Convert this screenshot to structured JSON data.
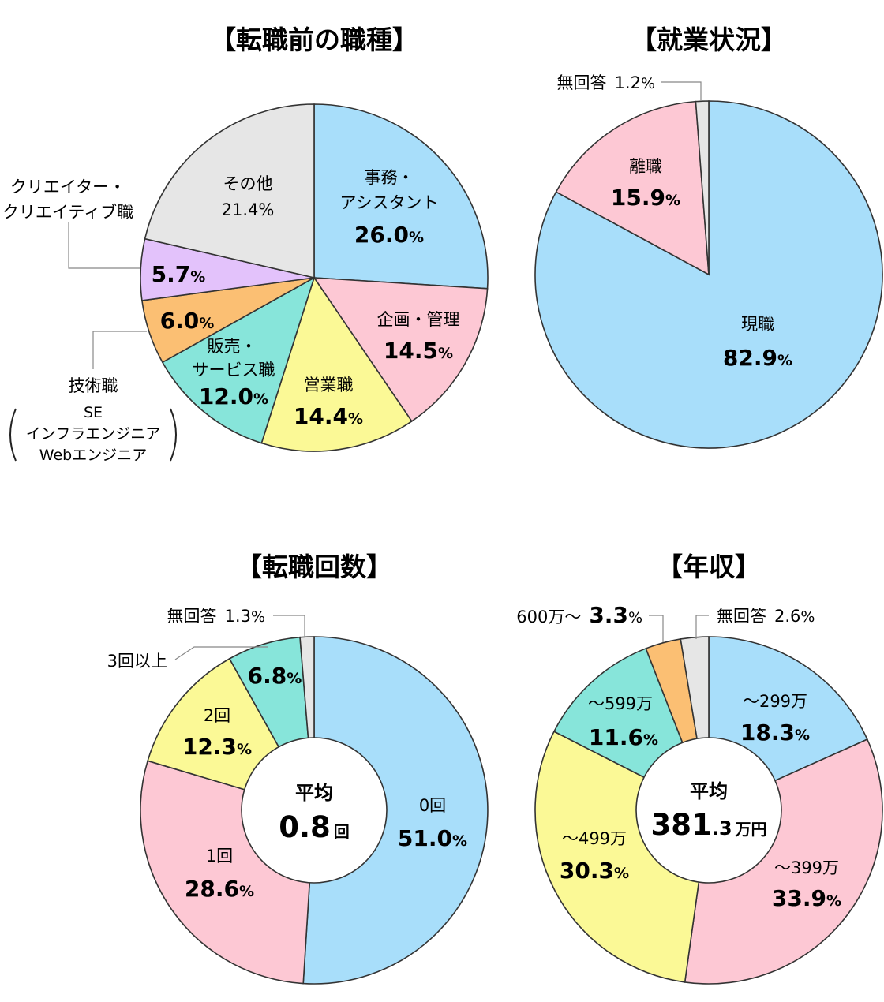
{
  "colors": {
    "blue": "#a8defa",
    "pink": "#fdc8d4",
    "teal": "#87e5da",
    "yellow": "#fbf996",
    "orange": "#fbbf73",
    "purple": "#e3c2fb",
    "gray": "#e6e6e6"
  },
  "chart_data": [
    {
      "type": "pie",
      "title": "【転職前の職種】",
      "slices": [
        {
          "label": "事務・アシスタント",
          "value": 26.0,
          "display": "26.0",
          "color": "blue"
        },
        {
          "label": "企画・管理",
          "value": 14.5,
          "display": "14.5",
          "color": "pink"
        },
        {
          "label": "営業職",
          "value": 14.4,
          "display": "14.4",
          "color": "yellow"
        },
        {
          "label": "販売・サービス職",
          "value": 12.0,
          "display": "12.0",
          "color": "teal"
        },
        {
          "label": "技術職",
          "value": 6.0,
          "display": "6.0",
          "color": "orange"
        },
        {
          "label": "クリエイター・クリエイティブ職",
          "value": 5.7,
          "display": "5.7",
          "color": "purple"
        },
        {
          "label": "その他",
          "value": 21.4,
          "display": "21.4",
          "color": "gray"
        }
      ],
      "labels": {
        "jimu_line1": "事務・",
        "jimu_line2": "アシスタント",
        "kikaku": "企画・管理",
        "eigyo": "営業職",
        "hanbai_line1": "販売・",
        "hanbai_line2": "サービス職",
        "creator_line1": "クリエイター・",
        "creator_line2": "クリエイティブ職",
        "other": "その他",
        "gijutsu": "技術職",
        "gijutsu_sub1": "SE",
        "gijutsu_sub2": "インフラエンジニア",
        "gijutsu_sub3": "Webエンジニア"
      }
    },
    {
      "type": "pie",
      "title": "【就業状況】",
      "slices": [
        {
          "label": "現職",
          "value": 82.9,
          "display": "82.9",
          "color": "blue"
        },
        {
          "label": "離職",
          "value": 15.9,
          "display": "15.9",
          "color": "pink"
        },
        {
          "label": "無回答",
          "value": 1.2,
          "display": "1.2",
          "color": "gray"
        }
      ]
    },
    {
      "type": "pie",
      "title": "【転職回数】",
      "center": {
        "label": "平均",
        "value": "0.8",
        "unit": "回"
      },
      "slices": [
        {
          "label": "0回",
          "value": 51.0,
          "display": "51.0",
          "color": "blue"
        },
        {
          "label": "1回",
          "value": 28.6,
          "display": "28.6",
          "color": "pink"
        },
        {
          "label": "2回",
          "value": 12.3,
          "display": "12.3",
          "color": "yellow"
        },
        {
          "label": "3回以上",
          "value": 6.8,
          "display": "6.8",
          "color": "teal"
        },
        {
          "label": "無回答",
          "value": 1.3,
          "display": "1.3",
          "color": "gray"
        }
      ]
    },
    {
      "type": "pie",
      "title": "【年収】",
      "center": {
        "label": "平均",
        "value": "381",
        "value_dec": ".3",
        "unit": "万円"
      },
      "slices": [
        {
          "label": "～299万",
          "value": 18.3,
          "display": "18.3",
          "color": "blue"
        },
        {
          "label": "～399万",
          "value": 33.9,
          "display": "33.9",
          "color": "pink"
        },
        {
          "label": "～499万",
          "value": 30.3,
          "display": "30.3",
          "color": "yellow"
        },
        {
          "label": "～599万",
          "value": 11.6,
          "display": "11.6",
          "color": "teal"
        },
        {
          "label": "600万～",
          "value": 3.3,
          "display": "3.3",
          "color": "orange"
        },
        {
          "label": "無回答",
          "value": 2.6,
          "display": "2.6",
          "color": "gray"
        }
      ]
    }
  ],
  "pct_sign": "%"
}
